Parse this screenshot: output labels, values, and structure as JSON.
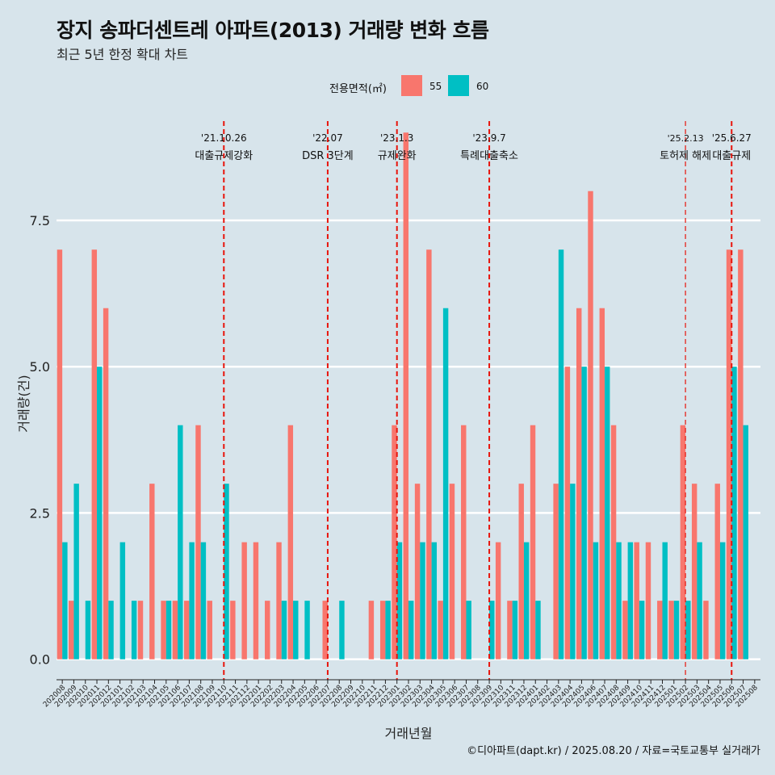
{
  "title": "장지 송파더센트레 아파트(2013) 거래량 변화 흐름",
  "subtitle": "최근 5년 한정 확대 차트",
  "caption": "©디아파트(dapt.kr) / 2025.08.20 / 자료=국토교통부 실거래가",
  "legend": {
    "title": "전용면적(㎡)",
    "items": [
      {
        "label": "55",
        "color": "#f8766d"
      },
      {
        "label": "60",
        "color": "#00bfc4"
      }
    ]
  },
  "chart_data": {
    "type": "bar",
    "title": "장지 송파더센트레 아파트(2013) 거래량 변화 흐름",
    "xlabel": "거래년월",
    "ylabel": "거래량(건)",
    "ylim": [
      -0.35,
      9.5
    ],
    "yticks": [
      0,
      2.5,
      5,
      7.5
    ],
    "ytick_labels": [
      "0.0",
      "2.5",
      "5.0",
      "7.5"
    ],
    "categories": [
      "202008",
      "202009",
      "202010",
      "202011",
      "202012",
      "202101",
      "202102",
      "202103",
      "202104",
      "202105",
      "202106",
      "202107",
      "202108",
      "202109",
      "202110",
      "202111",
      "202112",
      "202201",
      "202202",
      "202203",
      "202204",
      "202205",
      "202206",
      "202207",
      "202208",
      "202209",
      "202210",
      "202211",
      "202212",
      "202301",
      "202302",
      "202303",
      "202304",
      "202305",
      "202306",
      "202307",
      "202308",
      "202309",
      "202310",
      "202311",
      "202312",
      "202401",
      "202402",
      "202403",
      "202404",
      "202405",
      "202406",
      "202407",
      "202408",
      "202409",
      "202410",
      "202411",
      "202412",
      "202501",
      "202502",
      "202503",
      "202504",
      "202505",
      "202506",
      "202507",
      "202508"
    ],
    "series": [
      {
        "name": "55",
        "color": "#f8766d",
        "values": [
          7,
          1,
          0,
          7,
          6,
          0,
          0,
          1,
          3,
          1,
          1,
          1,
          4,
          1,
          0,
          1,
          2,
          2,
          1,
          2,
          4,
          0,
          0,
          1,
          0,
          0,
          0,
          1,
          1,
          4,
          9,
          3,
          7,
          1,
          3,
          4,
          0,
          0,
          2,
          1,
          3,
          4,
          0,
          3,
          5,
          6,
          8,
          6,
          4,
          1,
          2,
          2,
          1,
          1,
          4,
          3,
          1,
          3,
          7,
          7,
          0
        ]
      },
      {
        "name": "60",
        "color": "#00bfc4",
        "values": [
          2,
          3,
          1,
          5,
          1,
          2,
          1,
          0,
          0,
          1,
          4,
          2,
          2,
          0,
          3,
          0,
          0,
          0,
          0,
          1,
          1,
          1,
          0,
          0,
          1,
          0,
          0,
          0,
          1,
          2,
          1,
          2,
          2,
          6,
          0,
          1,
          0,
          1,
          0,
          1,
          2,
          1,
          0,
          7,
          3,
          5,
          2,
          5,
          2,
          2,
          1,
          0,
          2,
          1,
          1,
          2,
          0,
          2,
          5,
          4,
          0
        ]
      }
    ],
    "events": [
      {
        "category": "202110",
        "date": "'21.10.26",
        "label": "대출규제강화"
      },
      {
        "category": "202207",
        "date": "'22.07",
        "label": "DSR 3단계"
      },
      {
        "category": "202301",
        "date": "'23.1.3",
        "label": "규제완화"
      },
      {
        "category": "202309",
        "date": "'23.9.7",
        "label": "특례대출축소"
      },
      {
        "category": "202502",
        "date": "'25.2.13",
        "label": "토허제 해제",
        "small": true
      },
      {
        "category": "202506",
        "date": "'25.6.27",
        "label": "대출규제"
      }
    ],
    "event_color": "#e8140b"
  }
}
